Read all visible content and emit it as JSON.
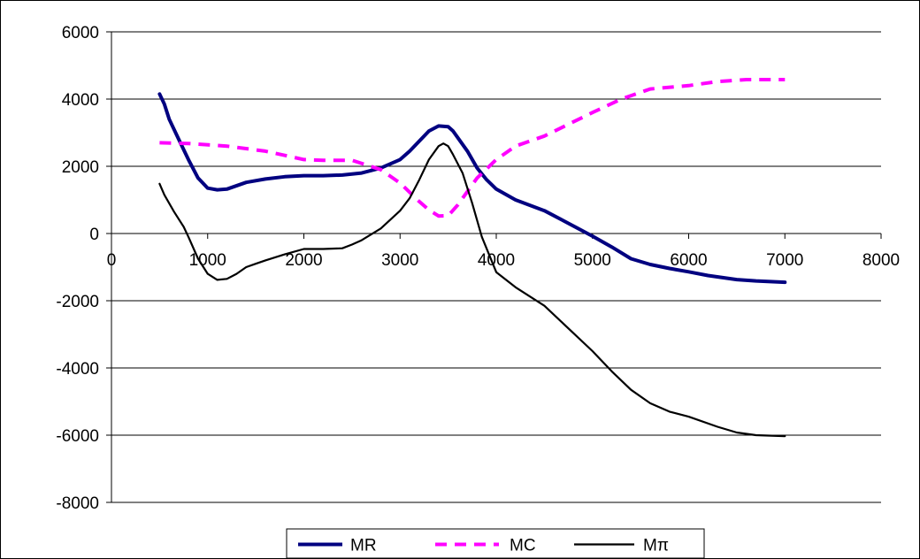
{
  "chart_data": {
    "type": "line",
    "title": "",
    "xlabel": "",
    "ylabel": "",
    "xlim": [
      0,
      8000
    ],
    "ylim": [
      -8000,
      6000
    ],
    "x_ticks": [
      0,
      1000,
      2000,
      3000,
      4000,
      5000,
      6000,
      7000,
      8000
    ],
    "y_ticks": [
      6000,
      4000,
      2000,
      0,
      -2000,
      -4000,
      -6000,
      -8000
    ],
    "x_tick_labels": [
      "0",
      "1000",
      "2000",
      "3000",
      "4000",
      "5000",
      "6000",
      "7000",
      "8000"
    ],
    "y_tick_labels": [
      "6000",
      "4000",
      "2000",
      "0",
      "-2000",
      "-4000",
      "-6000",
      "-8000"
    ],
    "grid": "horizontal",
    "legend_position": "bottom",
    "series": [
      {
        "name": "MR",
        "color": "#000080",
        "style": "solid",
        "points": [
          [
            500,
            4150
          ],
          [
            550,
            3850
          ],
          [
            600,
            3400
          ],
          [
            700,
            2800
          ],
          [
            800,
            2200
          ],
          [
            900,
            1650
          ],
          [
            1000,
            1350
          ],
          [
            1100,
            1300
          ],
          [
            1200,
            1320
          ],
          [
            1400,
            1520
          ],
          [
            1600,
            1620
          ],
          [
            1800,
            1690
          ],
          [
            2000,
            1720
          ],
          [
            2200,
            1720
          ],
          [
            2400,
            1740
          ],
          [
            2600,
            1800
          ],
          [
            2800,
            1950
          ],
          [
            3000,
            2200
          ],
          [
            3100,
            2450
          ],
          [
            3200,
            2750
          ],
          [
            3300,
            3050
          ],
          [
            3400,
            3200
          ],
          [
            3500,
            3180
          ],
          [
            3550,
            3050
          ],
          [
            3600,
            2850
          ],
          [
            3700,
            2450
          ],
          [
            3800,
            1950
          ],
          [
            3900,
            1600
          ],
          [
            4000,
            1320
          ],
          [
            4200,
            1000
          ],
          [
            4500,
            680
          ],
          [
            4700,
            380
          ],
          [
            5000,
            -80
          ],
          [
            5200,
            -400
          ],
          [
            5400,
            -750
          ],
          [
            5600,
            -920
          ],
          [
            5800,
            -1040
          ],
          [
            6000,
            -1140
          ],
          [
            6200,
            -1250
          ],
          [
            6500,
            -1370
          ],
          [
            6700,
            -1410
          ],
          [
            7000,
            -1450
          ]
        ]
      },
      {
        "name": "MC",
        "color": "#ff00ff",
        "style": "dashed",
        "points": [
          [
            500,
            2700
          ],
          [
            800,
            2680
          ],
          [
            1200,
            2600
          ],
          [
            1600,
            2450
          ],
          [
            2000,
            2200
          ],
          [
            2200,
            2180
          ],
          [
            2500,
            2180
          ],
          [
            2800,
            1900
          ],
          [
            3000,
            1500
          ],
          [
            3200,
            950
          ],
          [
            3300,
            700
          ],
          [
            3400,
            520
          ],
          [
            3500,
            530
          ],
          [
            3600,
            850
          ],
          [
            3800,
            1650
          ],
          [
            4000,
            2200
          ],
          [
            4200,
            2600
          ],
          [
            4500,
            2900
          ],
          [
            5000,
            3600
          ],
          [
            5300,
            4000
          ],
          [
            5600,
            4300
          ],
          [
            6000,
            4400
          ],
          [
            6300,
            4520
          ],
          [
            6600,
            4580
          ],
          [
            7000,
            4580
          ]
        ]
      },
      {
        "name": "Mπ",
        "color": "#000000",
        "style": "solid",
        "points": [
          [
            500,
            1480
          ],
          [
            550,
            1150
          ],
          [
            650,
            650
          ],
          [
            750,
            200
          ],
          [
            800,
            -100
          ],
          [
            900,
            -750
          ],
          [
            1000,
            -1200
          ],
          [
            1100,
            -1380
          ],
          [
            1200,
            -1350
          ],
          [
            1300,
            -1200
          ],
          [
            1400,
            -1000
          ],
          [
            1500,
            -900
          ],
          [
            1600,
            -800
          ],
          [
            1800,
            -620
          ],
          [
            2000,
            -460
          ],
          [
            2200,
            -460
          ],
          [
            2400,
            -440
          ],
          [
            2500,
            -330
          ],
          [
            2600,
            -200
          ],
          [
            2800,
            150
          ],
          [
            3000,
            680
          ],
          [
            3100,
            1050
          ],
          [
            3200,
            1600
          ],
          [
            3300,
            2200
          ],
          [
            3400,
            2600
          ],
          [
            3450,
            2680
          ],
          [
            3500,
            2600
          ],
          [
            3550,
            2350
          ],
          [
            3650,
            1800
          ],
          [
            3750,
            900
          ],
          [
            3850,
            -100
          ],
          [
            4000,
            -1150
          ],
          [
            4200,
            -1600
          ],
          [
            4500,
            -2150
          ],
          [
            5000,
            -3500
          ],
          [
            5200,
            -4100
          ],
          [
            5400,
            -4650
          ],
          [
            5600,
            -5050
          ],
          [
            5800,
            -5300
          ],
          [
            6000,
            -5450
          ],
          [
            6300,
            -5750
          ],
          [
            6500,
            -5920
          ],
          [
            6700,
            -6000
          ],
          [
            7000,
            -6030
          ]
        ]
      }
    ]
  }
}
